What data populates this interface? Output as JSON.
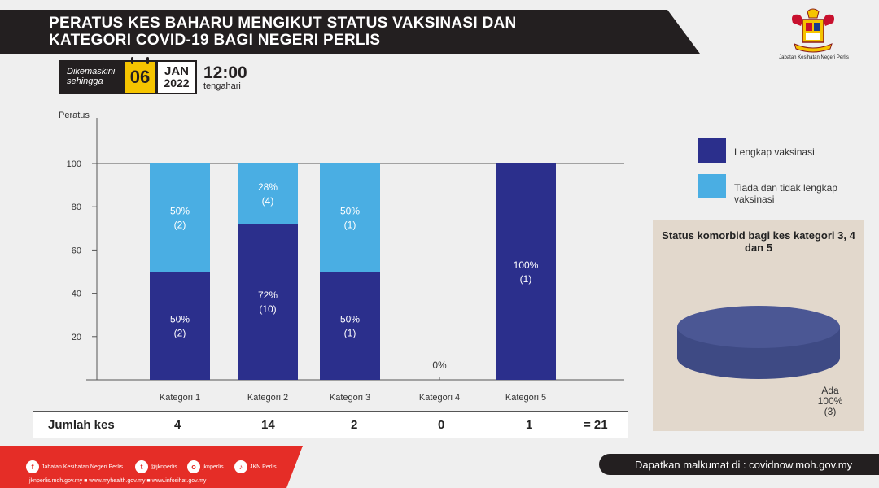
{
  "header": {
    "title_line1": "PERATUS KES BAHARU MENGIKUT STATUS VAKSINASI  DAN",
    "title_line2": "KATEGORI COVID-19 BAGI NEGERI PERLIS",
    "dept_name": "Jabatan Kesihatan Negeri Perlis"
  },
  "update": {
    "prefix_line1": "Dikemaskini",
    "prefix_line2": "sehingga",
    "day": "06",
    "month": "JAN",
    "year": "2022",
    "time": "12:00",
    "time_note": "tengahari"
  },
  "colors": {
    "complete": "#2b2f8c",
    "incomplete": "#4aaee3",
    "pie": "#4b5794",
    "footer_red": "#e52d27"
  },
  "chart_data": [
    {
      "type": "bar",
      "stacked": true,
      "ylabel": "Peratus",
      "ylim": [
        0,
        100
      ],
      "yticks": [
        "20",
        "40",
        "60",
        "80",
        "100"
      ],
      "grid": false,
      "legend_position": "right",
      "categories": [
        "Kategori 1",
        "Kategori 2",
        "Kategori 3",
        "Kategori 4",
        "Kategori 5"
      ],
      "series": [
        {
          "name": "Lengkap vaksinasi",
          "values": [
            50,
            72,
            50,
            0,
            100
          ],
          "labels": [
            "50%",
            "72%",
            "50%",
            "0%",
            "100%"
          ],
          "counts": [
            "(2)",
            "(10)",
            "(1)",
            "",
            "(1)"
          ]
        },
        {
          "name": "Tiada dan tidak lengkap vaksinasi",
          "values": [
            50,
            28,
            50,
            0,
            0
          ],
          "labels": [
            "50%",
            "28%",
            "50%",
            "",
            ""
          ],
          "counts": [
            "(2)",
            "(4)",
            "(1)",
            "",
            ""
          ]
        }
      ]
    },
    {
      "type": "pie",
      "title": "Status komorbid bagi kes kategori 3, 4 dan 5",
      "slices": [
        {
          "label": "Ada",
          "percent": "100%",
          "count": "(3)",
          "value": 100
        }
      ]
    }
  ],
  "totals": {
    "label": "Jumlah kes",
    "values": [
      "4",
      "14",
      "2",
      "0",
      "1"
    ],
    "grand_total": "= 21"
  },
  "footer": {
    "social": [
      {
        "icon": "facebook-icon",
        "glyph": "f",
        "label": "Jabatan Kesihatan Negeri Perlis"
      },
      {
        "icon": "twitter-icon",
        "glyph": "t",
        "label": "@jknperlis"
      },
      {
        "icon": "instagram-icon",
        "glyph": "o",
        "label": "jknperlis"
      },
      {
        "icon": "tiktok-icon",
        "glyph": "♪",
        "label": "JKN Perlis"
      }
    ],
    "websites": "jknperlis.moh.gov.my  ■  www.myhealth.gov.my  ■  www.infosihat.gov.my",
    "info_text": "Dapatkan malkumat di : covidnow.moh.gov.my"
  }
}
